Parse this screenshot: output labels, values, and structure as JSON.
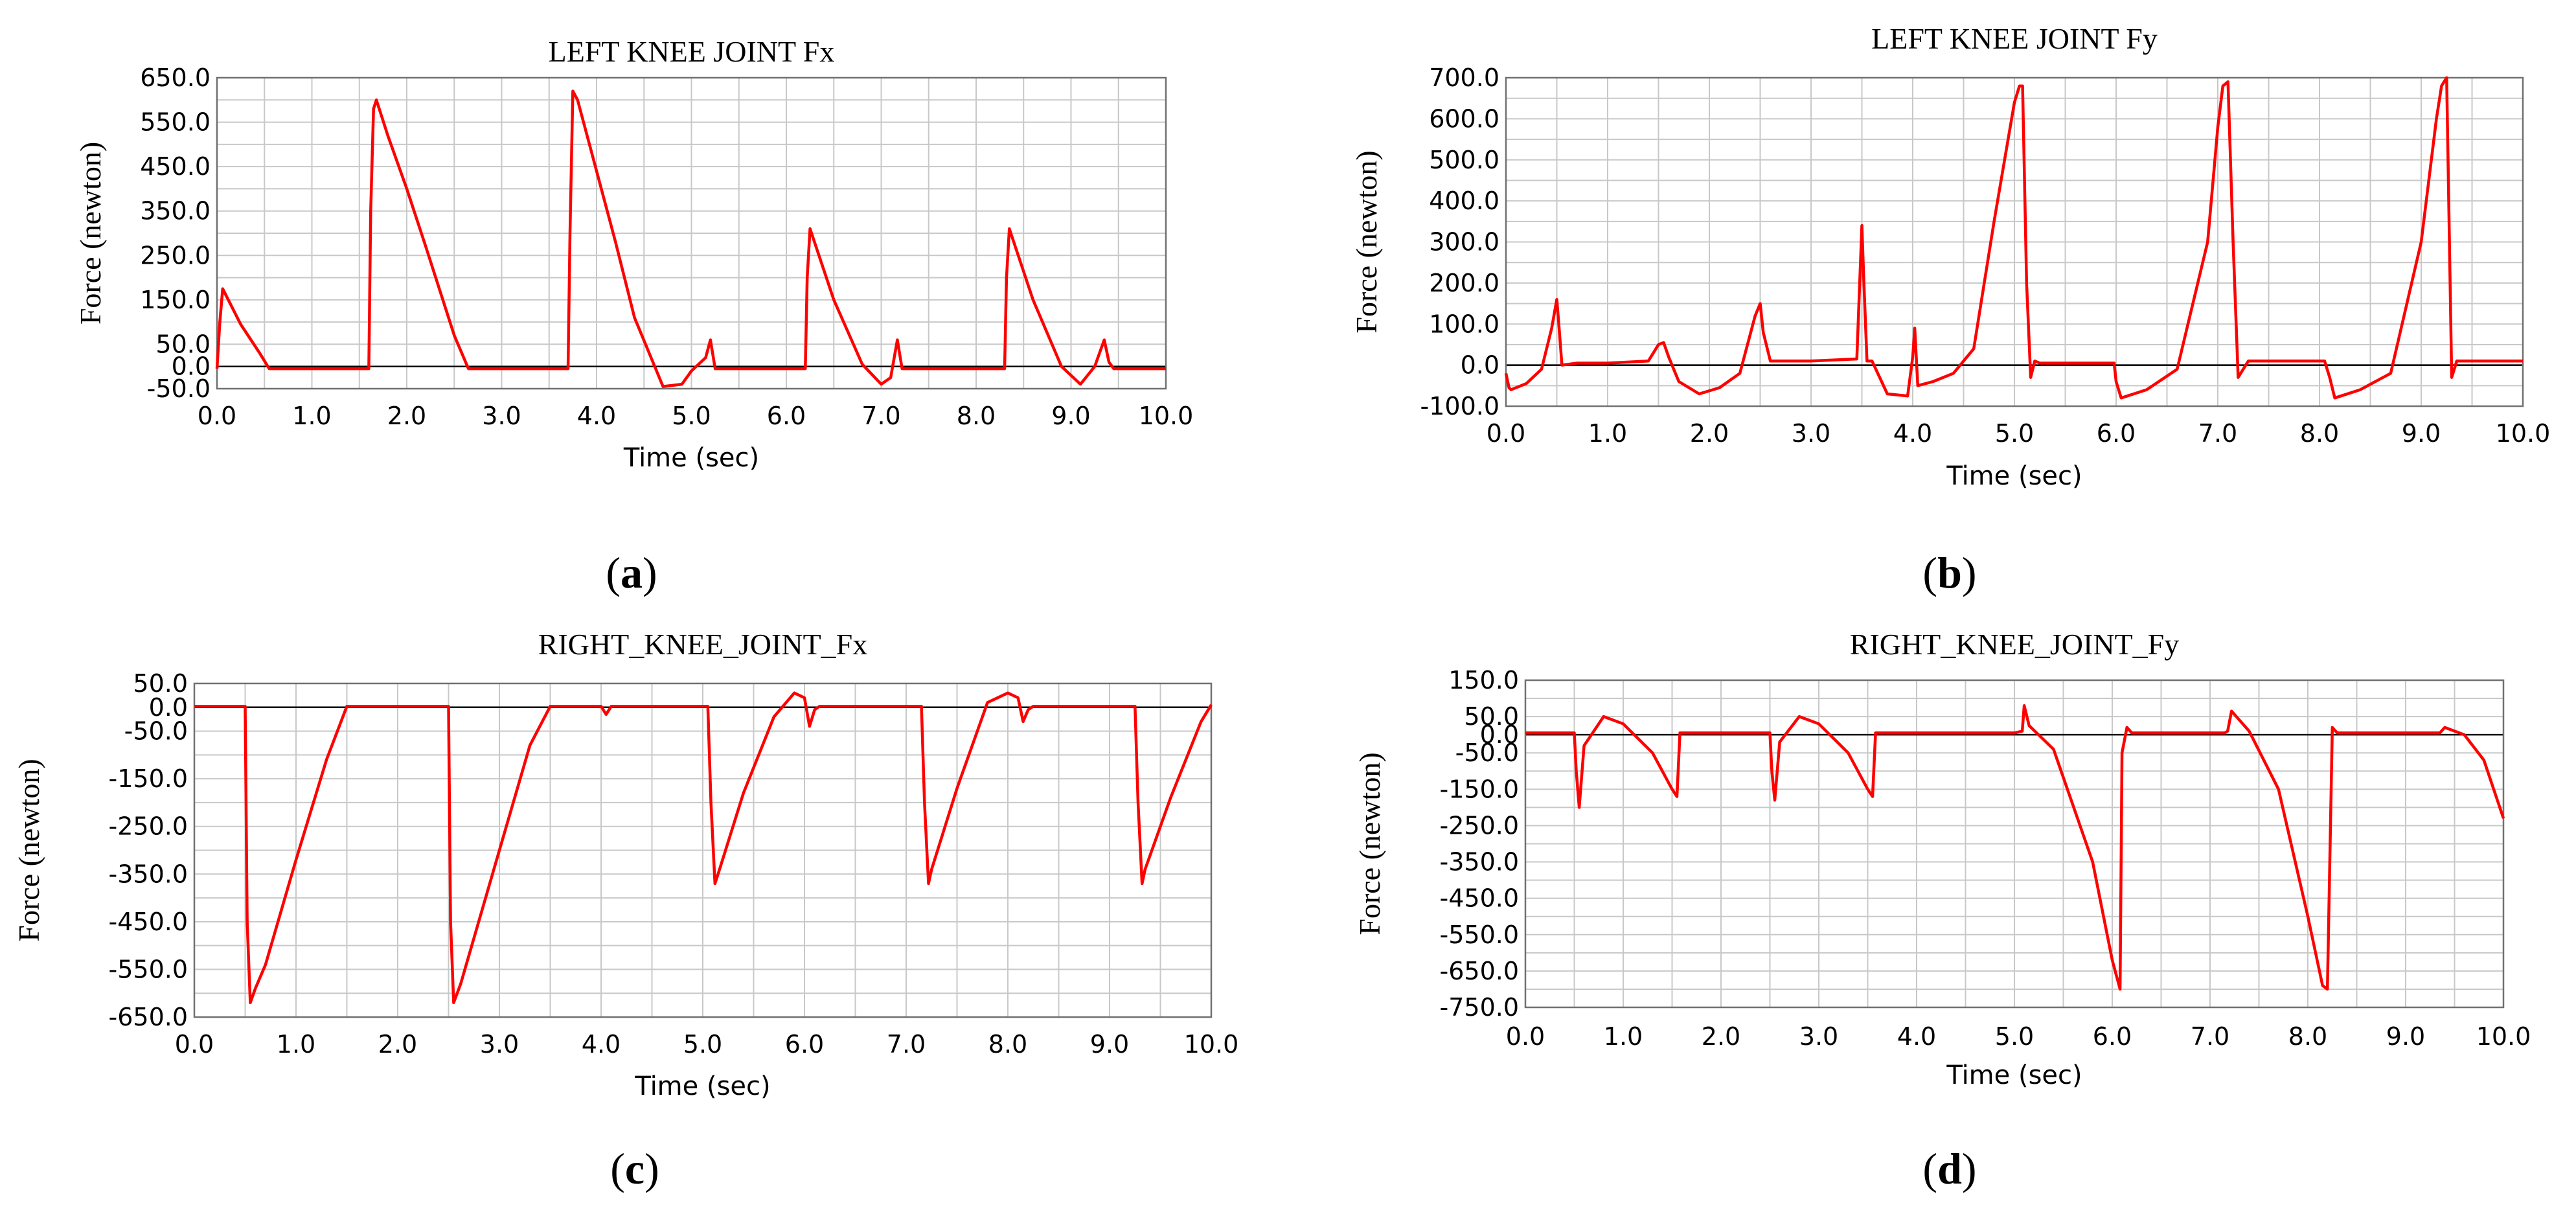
{
  "chart_data": [
    {
      "id": "a",
      "type": "line",
      "title": "LEFT KNEE JOINT Fx",
      "xlabel": "Time (sec)",
      "ylabel": "Force (newton)",
      "caption_letter": "a",
      "xlim": [
        0,
        10
      ],
      "ylim": [
        -50,
        650
      ],
      "xticks": [
        "0.0",
        "1.0",
        "2.0",
        "3.0",
        "4.0",
        "5.0",
        "6.0",
        "7.0",
        "8.0",
        "9.0",
        "10.0"
      ],
      "yticks": [
        {
          "value": 650,
          "label": "650.0"
        },
        {
          "value": 550,
          "label": "550.0"
        },
        {
          "value": 450,
          "label": "450.0"
        },
        {
          "value": 350,
          "label": "350.0"
        },
        {
          "value": 250,
          "label": "250.0"
        },
        {
          "value": 150,
          "label": "150.0"
        },
        {
          "value": 50,
          "label": "50.0"
        },
        {
          "value": 0,
          "label": "0.0"
        },
        {
          "value": -50,
          "label": "-50.0"
        }
      ],
      "grid": true,
      "zero_line": true,
      "line_color": "#ff0000",
      "series": [
        {
          "x": [
            0.0,
            0.03,
            0.06,
            0.25,
            0.45,
            0.55,
            0.62,
            1.0,
            1.6,
            1.62,
            1.65,
            1.68,
            1.8,
            2.0,
            2.2,
            2.5,
            2.65,
            3.0,
            3.7,
            3.72,
            3.75,
            3.8,
            3.95,
            4.2,
            4.4,
            4.7,
            4.9,
            5.0,
            5.15,
            5.2,
            5.25,
            5.35,
            6.0,
            6.2,
            6.22,
            6.25,
            6.5,
            6.8,
            7.0,
            7.1,
            7.17,
            7.22,
            7.3,
            8.0,
            8.3,
            8.32,
            8.35,
            8.6,
            8.9,
            9.1,
            9.25,
            9.35,
            9.4,
            9.45,
            10.0
          ],
          "y": [
            -5,
            100,
            175,
            95,
            30,
            -5,
            -5,
            -5,
            -5,
            350,
            580,
            600,
            520,
            400,
            270,
            70,
            -5,
            -5,
            -5,
            300,
            620,
            600,
            480,
            280,
            110,
            -45,
            -40,
            -10,
            20,
            60,
            -5,
            -5,
            -5,
            -5,
            200,
            310,
            150,
            5,
            -40,
            -25,
            60,
            -5,
            -5,
            -5,
            -5,
            200,
            310,
            150,
            0,
            -40,
            0,
            60,
            10,
            -5,
            -5
          ]
        }
      ]
    },
    {
      "id": "b",
      "type": "line",
      "title": "LEFT KNEE JOINT Fy",
      "xlabel": "Time (sec)",
      "ylabel": "Force (newton)",
      "caption_letter": "b",
      "xlim": [
        0,
        10
      ],
      "ylim": [
        -100,
        700
      ],
      "xticks": [
        "0.0",
        "1.0",
        "2.0",
        "3.0",
        "4.0",
        "5.0",
        "6.0",
        "7.0",
        "8.0",
        "9.0",
        "10.0"
      ],
      "yticks": [
        {
          "value": 700,
          "label": "700.0"
        },
        {
          "value": 600,
          "label": "600.0"
        },
        {
          "value": 500,
          "label": "500.0"
        },
        {
          "value": 400,
          "label": "400.0"
        },
        {
          "value": 300,
          "label": "300.0"
        },
        {
          "value": 200,
          "label": "200.0"
        },
        {
          "value": 100,
          "label": "100.0"
        },
        {
          "value": 0,
          "label": "0.0"
        },
        {
          "value": -100,
          "label": "-100.0"
        }
      ],
      "grid": true,
      "zero_line": true,
      "line_color": "#ff0000",
      "series": [
        {
          "x": [
            0.0,
            0.03,
            0.05,
            0.2,
            0.35,
            0.45,
            0.5,
            0.52,
            0.55,
            0.7,
            1.0,
            1.4,
            1.5,
            1.55,
            1.6,
            1.7,
            1.9,
            2.1,
            2.3,
            2.45,
            2.5,
            2.53,
            2.6,
            3.0,
            3.45,
            3.5,
            3.52,
            3.55,
            3.6,
            3.75,
            3.95,
            4.0,
            4.02,
            4.05,
            4.2,
            4.4,
            4.6,
            4.8,
            5.0,
            5.05,
            5.08,
            5.12,
            5.16,
            5.2,
            5.25,
            5.5,
            5.98,
            6.0,
            6.05,
            6.3,
            6.6,
            6.9,
            7.0,
            7.05,
            7.1,
            7.15,
            7.2,
            7.3,
            8.0,
            8.05,
            8.1,
            8.15,
            8.4,
            8.7,
            9.0,
            9.15,
            9.2,
            9.25,
            9.3,
            9.35,
            9.5,
            10.0
          ],
          "y": [
            -20,
            -55,
            -60,
            -45,
            -10,
            90,
            160,
            100,
            0,
            5,
            5,
            10,
            50,
            55,
            20,
            -40,
            -70,
            -55,
            -20,
            120,
            150,
            80,
            10,
            10,
            15,
            340,
            200,
            10,
            10,
            -70,
            -75,
            20,
            90,
            -50,
            -40,
            -20,
            40,
            350,
            640,
            680,
            680,
            200,
            -30,
            10,
            5,
            5,
            5,
            -40,
            -80,
            -60,
            -10,
            300,
            580,
            680,
            690,
            300,
            -30,
            10,
            10,
            10,
            -30,
            -80,
            -60,
            -20,
            300,
            600,
            680,
            700,
            -30,
            10,
            10,
            10
          ]
        }
      ]
    },
    {
      "id": "c",
      "type": "line",
      "title": "RIGHT_KNEE_JOINT_Fx",
      "xlabel": "Time (sec)",
      "ylabel": "Force (newton)",
      "caption_letter": "c",
      "xlim": [
        0,
        10
      ],
      "ylim": [
        -650,
        50
      ],
      "xticks": [
        "0.0",
        "1.0",
        "2.0",
        "3.0",
        "4.0",
        "5.0",
        "6.0",
        "7.0",
        "8.0",
        "9.0",
        "10.0"
      ],
      "yticks": [
        {
          "value": 50,
          "label": "50.0"
        },
        {
          "value": 0,
          "label": "0.0"
        },
        {
          "value": -50,
          "label": "-50.0"
        },
        {
          "value": -150,
          "label": "-150.0"
        },
        {
          "value": -250,
          "label": "-250.0"
        },
        {
          "value": -350,
          "label": "-350.0"
        },
        {
          "value": -450,
          "label": "-450.0"
        },
        {
          "value": -550,
          "label": "-550.0"
        },
        {
          "value": -650,
          "label": "-650.0"
        }
      ],
      "grid": true,
      "zero_line": true,
      "line_color": "#ff0000",
      "series": [
        {
          "x": [
            0.0,
            0.5,
            0.52,
            0.55,
            0.6,
            0.7,
            1.0,
            1.3,
            1.5,
            1.55,
            2.5,
            2.52,
            2.55,
            2.62,
            3.0,
            3.3,
            3.5,
            3.55,
            4.0,
            4.05,
            4.1,
            4.2,
            5.05,
            5.08,
            5.12,
            5.15,
            5.4,
            5.7,
            5.9,
            6.0,
            6.05,
            6.1,
            6.15,
            6.2,
            7.15,
            7.18,
            7.22,
            7.25,
            7.5,
            7.8,
            8.0,
            8.1,
            8.15,
            8.2,
            8.25,
            8.3,
            9.25,
            9.28,
            9.32,
            9.35,
            9.6,
            9.9,
            10.0
          ],
          "y": [
            2,
            2,
            -450,
            -620,
            -590,
            -540,
            -320,
            -110,
            2,
            2,
            2,
            -450,
            -620,
            -580,
            -300,
            -80,
            2,
            2,
            2,
            -15,
            2,
            2,
            2,
            -200,
            -370,
            -350,
            -180,
            -20,
            30,
            20,
            -40,
            -5,
            2,
            2,
            2,
            -200,
            -370,
            -340,
            -170,
            10,
            30,
            20,
            -30,
            -5,
            2,
            2,
            2,
            -200,
            -370,
            -340,
            -190,
            -30,
            5
          ]
        }
      ]
    },
    {
      "id": "d",
      "type": "line",
      "title": "RIGHT_KNEE_JOINT_Fy",
      "xlabel": "Time (sec)",
      "ylabel": "Force (newton)",
      "caption_letter": "d",
      "xlim": [
        0,
        10
      ],
      "ylim": [
        -750,
        150
      ],
      "xticks": [
        "0.0",
        "1.0",
        "2.0",
        "3.0",
        "4.0",
        "5.0",
        "6.0",
        "7.0",
        "8.0",
        "9.0",
        "10.0"
      ],
      "yticks": [
        {
          "value": 150,
          "label": "150.0"
        },
        {
          "value": 50,
          "label": "50.0"
        },
        {
          "value": 0,
          "label": "0.0"
        },
        {
          "value": -50,
          "label": "-50.0"
        },
        {
          "value": -150,
          "label": "-150.0"
        },
        {
          "value": -250,
          "label": "-250.0"
        },
        {
          "value": -350,
          "label": "-350.0"
        },
        {
          "value": -450,
          "label": "-450.0"
        },
        {
          "value": -550,
          "label": "-550.0"
        },
        {
          "value": -650,
          "label": "-650.0"
        },
        {
          "value": -750,
          "label": "-750.0"
        }
      ],
      "grid": true,
      "zero_line": true,
      "line_color": "#ff0000",
      "series": [
        {
          "x": [
            0.0,
            0.5,
            0.52,
            0.55,
            0.6,
            0.8,
            1.0,
            1.3,
            1.5,
            1.55,
            1.58,
            2.5,
            2.52,
            2.55,
            2.6,
            2.8,
            3.0,
            3.3,
            3.5,
            3.55,
            3.58,
            4.0,
            5.0,
            5.08,
            5.1,
            5.15,
            5.4,
            5.8,
            6.0,
            6.08,
            6.1,
            6.15,
            6.2,
            7.15,
            7.18,
            7.22,
            7.4,
            7.7,
            8.0,
            8.15,
            8.2,
            8.25,
            8.3,
            9.3,
            9.35,
            9.4,
            9.6,
            9.8,
            10.0
          ],
          "y": [
            5,
            5,
            -100,
            -200,
            -30,
            50,
            30,
            -50,
            -150,
            -170,
            5,
            5,
            -100,
            -180,
            -20,
            50,
            30,
            -50,
            -150,
            -170,
            5,
            5,
            5,
            10,
            80,
            25,
            -40,
            -350,
            -620,
            -700,
            -50,
            20,
            5,
            5,
            10,
            65,
            10,
            -150,
            -500,
            -690,
            -700,
            20,
            5,
            5,
            5,
            20,
            0,
            -70,
            -230
          ]
        }
      ]
    }
  ]
}
